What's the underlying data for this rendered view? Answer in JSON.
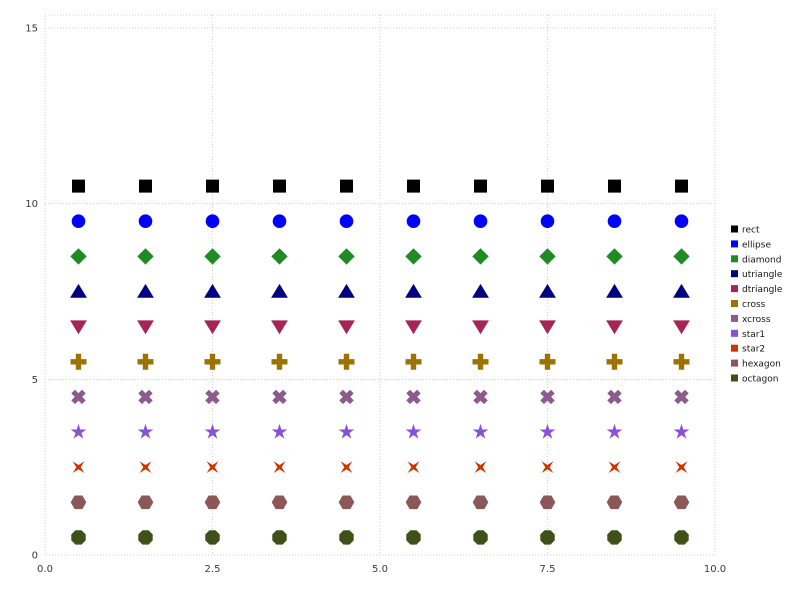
{
  "chart_data": {
    "type": "scatter",
    "title": "",
    "xlabel": "",
    "ylabel": "",
    "xlim": [
      0,
      10
    ],
    "ylim": [
      0,
      15
    ],
    "x": [
      0.5,
      1.5,
      2.5,
      3.5,
      4.5,
      5.5,
      6.5,
      7.5,
      8.5,
      9.5
    ],
    "xticks": [
      {
        "value": 0,
        "label": "0.0"
      },
      {
        "value": 2.5,
        "label": "2.5"
      },
      {
        "value": 5,
        "label": "5.0"
      },
      {
        "value": 7.5,
        "label": "7.5"
      },
      {
        "value": 10,
        "label": "10.0"
      }
    ],
    "yticks": [
      {
        "value": 0,
        "label": "0"
      },
      {
        "value": 5,
        "label": "5"
      },
      {
        "value": 10,
        "label": "10"
      },
      {
        "value": 15,
        "label": "15"
      }
    ],
    "grid": "dotted",
    "grid_color": "#cdcdcd",
    "background": "#ffffff",
    "legend_position": "outside-right",
    "series": [
      {
        "name": "rect",
        "marker": "rect",
        "color": "#000000",
        "y": 10.5
      },
      {
        "name": "ellipse",
        "marker": "ellipse",
        "color": "#0000ff",
        "y": 9.5
      },
      {
        "name": "diamond",
        "marker": "diamond",
        "color": "#1f8b24",
        "y": 8.5
      },
      {
        "name": "utriangle",
        "marker": "utriangle",
        "color": "#000080",
        "y": 7.5
      },
      {
        "name": "dtriangle",
        "marker": "dtriangle",
        "color": "#a62457",
        "y": 6.5
      },
      {
        "name": "cross",
        "marker": "cross",
        "color": "#9c7200",
        "y": 5.5
      },
      {
        "name": "xcross",
        "marker": "xcross",
        "color": "#8d5a8d",
        "y": 4.5
      },
      {
        "name": "star1",
        "marker": "star1",
        "color": "#8950d8",
        "y": 3.5
      },
      {
        "name": "star2",
        "marker": "star2",
        "color": "#cc3700",
        "y": 2.5
      },
      {
        "name": "hexagon",
        "marker": "hexagon",
        "color": "#8b5757",
        "y": 1.5
      },
      {
        "name": "octagon",
        "marker": "octagon",
        "color": "#3f5019",
        "y": 0.5
      }
    ]
  }
}
